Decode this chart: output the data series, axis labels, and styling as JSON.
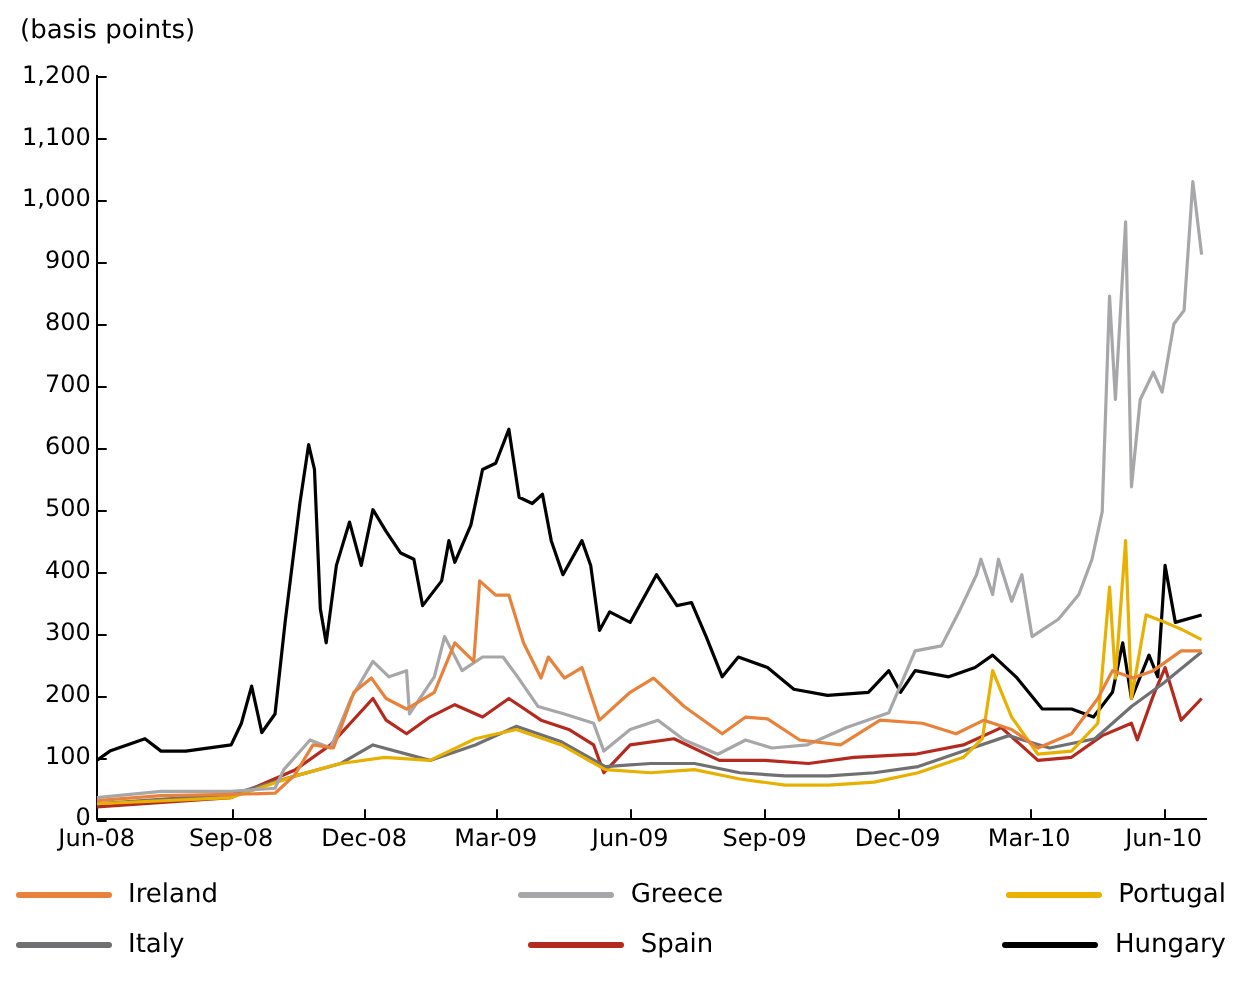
{
  "chart_data": {
    "type": "line",
    "ylabel": "(basis points)",
    "xlim": [
      "2008-06-01",
      "2010-06-30"
    ],
    "xticks": [
      {
        "value": "2008-06-01",
        "label": "Jun-08"
      },
      {
        "value": "2008-09-01",
        "label": "Sep-08"
      },
      {
        "value": "2008-12-01",
        "label": "Dec-08"
      },
      {
        "value": "2009-03-01",
        "label": "Mar-09"
      },
      {
        "value": "2009-06-01",
        "label": "Jun-09"
      },
      {
        "value": "2009-09-01",
        "label": "Sep-09"
      },
      {
        "value": "2009-12-01",
        "label": "Dec-09"
      },
      {
        "value": "2010-03-01",
        "label": "Mar-10"
      },
      {
        "value": "2010-06-01",
        "label": "Jun-10"
      }
    ],
    "ylim": [
      0,
      1200
    ],
    "yticks": [
      0,
      100,
      200,
      300,
      400,
      500,
      600,
      700,
      800,
      900,
      {
        "value": 1000,
        "label": "1,000"
      },
      {
        "value": 1100,
        "label": "1,100"
      },
      {
        "value": 1200,
        "label": "1,200"
      }
    ],
    "grid": false,
    "legend": "bottom",
    "marker": "none",
    "line_style": "solid",
    "series": [
      {
        "name": "Ireland",
        "color": "#e8823a",
        "x": [
          "2008-06-01",
          "2008-07-15",
          "2008-09-01",
          "2008-10-01",
          "2008-10-14",
          "2008-10-27",
          "2008-11-10",
          "2008-11-24",
          "2008-12-06",
          "2008-12-16",
          "2008-12-30",
          "2009-01-18",
          "2009-02-01",
          "2009-02-14",
          "2009-02-18",
          "2009-03-01",
          "2009-03-10",
          "2009-03-20",
          "2009-04-01",
          "2009-04-06",
          "2009-04-17",
          "2009-04-29",
          "2009-05-11",
          "2009-06-01",
          "2009-06-17",
          "2009-07-08",
          "2009-08-03",
          "2009-08-19",
          "2009-09-03",
          "2009-09-25",
          "2009-10-23",
          "2009-11-19",
          "2009-12-18",
          "2010-01-10",
          "2010-01-29",
          "2010-02-17",
          "2010-03-07",
          "2010-03-30",
          "2010-04-17",
          "2010-04-27",
          "2010-05-11",
          "2010-05-25",
          "2010-06-13",
          "2010-06-27"
        ],
        "values": [
          30,
          38,
          40,
          42,
          70,
          120,
          115,
          205,
          228,
          195,
          178,
          205,
          285,
          255,
          385,
          362,
          362,
          285,
          228,
          262,
          228,
          245,
          160,
          205,
          228,
          182,
          138,
          165,
          162,
          128,
          120,
          160,
          155,
          138,
          160,
          145,
          115,
          138,
          195,
          240,
          228,
          240,
          272,
          272
        ]
      },
      {
        "name": "Greece",
        "color": "#a7a7a9",
        "x": [
          "2008-06-01",
          "2008-07-15",
          "2008-09-01",
          "2008-10-01",
          "2008-10-07",
          "2008-10-25",
          "2008-11-08",
          "2008-11-22",
          "2008-12-07",
          "2008-12-18",
          "2008-12-30",
          "2009-01-01",
          "2009-01-18",
          "2009-01-25",
          "2009-02-06",
          "2009-02-20",
          "2009-03-06",
          "2009-03-16",
          "2009-03-30",
          "2009-04-17",
          "2009-05-07",
          "2009-05-14",
          "2009-06-01",
          "2009-06-20",
          "2009-07-08",
          "2009-07-31",
          "2009-08-19",
          "2009-09-06",
          "2009-09-30",
          "2009-10-27",
          "2009-11-25",
          "2009-12-13",
          "2009-12-31",
          "2010-01-12",
          "2010-01-24",
          "2010-01-27",
          "2010-02-04",
          "2010-02-08",
          "2010-02-17",
          "2010-02-24",
          "2010-03-03",
          "2010-03-21",
          "2010-04-04",
          "2010-04-13",
          "2010-04-20",
          "2010-04-25",
          "2010-04-29",
          "2010-05-06",
          "2010-05-10",
          "2010-05-16",
          "2010-05-25",
          "2010-05-31",
          "2010-06-08",
          "2010-06-15",
          "2010-06-21",
          "2010-06-27"
        ],
        "values": [
          35,
          45,
          45,
          50,
          80,
          128,
          115,
          195,
          255,
          230,
          240,
          170,
          230,
          295,
          240,
          262,
          262,
          230,
          182,
          170,
          155,
          110,
          145,
          160,
          128,
          105,
          128,
          115,
          120,
          148,
          172,
          272,
          280,
          335,
          395,
          420,
          363,
          420,
          352,
          395,
          295,
          323,
          363,
          420,
          497,
          845,
          678,
          965,
          537,
          678,
          722,
          690,
          800,
          822,
          1030,
          912
        ]
      },
      {
        "name": "Portugal",
        "color": "#e8b000",
        "x": [
          "2008-06-01",
          "2008-09-01",
          "2008-10-15",
          "2008-11-15",
          "2008-12-15",
          "2009-01-15",
          "2009-02-15",
          "2009-03-15",
          "2009-04-15",
          "2009-05-15",
          "2009-06-15",
          "2009-07-15",
          "2009-08-15",
          "2009-09-15",
          "2009-10-15",
          "2009-11-15",
          "2009-12-15",
          "2010-01-15",
          "2010-01-28",
          "2010-02-04",
          "2010-02-17",
          "2010-03-07",
          "2010-03-30",
          "2010-04-17",
          "2010-04-25",
          "2010-04-29",
          "2010-05-06",
          "2010-05-10",
          "2010-05-20",
          "2010-06-02",
          "2010-06-13",
          "2010-06-27"
        ],
        "values": [
          25,
          35,
          70,
          90,
          100,
          95,
          130,
          145,
          120,
          80,
          75,
          80,
          65,
          55,
          55,
          60,
          75,
          100,
          130,
          240,
          165,
          105,
          110,
          155,
          375,
          228,
          450,
          195,
          330,
          318,
          307,
          290
        ]
      },
      {
        "name": "Italy",
        "color": "#707072",
        "x": [
          "2008-06-01",
          "2008-09-01",
          "2008-10-15",
          "2008-11-15",
          "2008-12-07",
          "2009-01-15",
          "2009-02-15",
          "2009-03-15",
          "2009-04-15",
          "2009-05-15",
          "2009-06-15",
          "2009-07-15",
          "2009-08-15",
          "2009-09-15",
          "2009-10-15",
          "2009-11-15",
          "2009-12-15",
          "2010-01-15",
          "2010-02-15",
          "2010-03-15",
          "2010-04-15",
          "2010-05-10",
          "2010-06-01",
          "2010-06-27"
        ],
        "values": [
          25,
          40,
          70,
          90,
          120,
          95,
          120,
          150,
          125,
          85,
          90,
          90,
          75,
          70,
          70,
          75,
          85,
          110,
          135,
          115,
          130,
          182,
          220,
          270
        ]
      },
      {
        "name": "Spain",
        "color": "#b52a1e",
        "x": [
          "2008-06-01",
          "2008-09-01",
          "2008-10-15",
          "2008-11-08",
          "2008-12-07",
          "2008-12-16",
          "2008-12-30",
          "2009-01-15",
          "2009-02-01",
          "2009-02-20",
          "2009-03-10",
          "2009-04-01",
          "2009-04-20",
          "2009-05-07",
          "2009-05-14",
          "2009-06-01",
          "2009-07-01",
          "2009-08-01",
          "2009-09-01",
          "2009-10-01",
          "2009-11-01",
          "2009-12-13",
          "2010-01-15",
          "2010-02-10",
          "2010-03-07",
          "2010-03-30",
          "2010-04-20",
          "2010-05-10",
          "2010-05-14",
          "2010-05-25",
          "2010-06-02",
          "2010-06-13",
          "2010-06-27"
        ],
        "values": [
          20,
          35,
          80,
          120,
          195,
          160,
          138,
          165,
          185,
          165,
          195,
          160,
          145,
          120,
          75,
          120,
          130,
          95,
          95,
          90,
          100,
          105,
          120,
          148,
          95,
          100,
          135,
          155,
          128,
          200,
          245,
          160,
          195
        ]
      },
      {
        "name": "Hungary",
        "color": "#000000",
        "x": [
          "2008-06-01",
          "2008-06-10",
          "2008-07-04",
          "2008-07-15",
          "2008-08-01",
          "2008-09-01",
          "2008-09-08",
          "2008-09-15",
          "2008-09-22",
          "2008-10-01",
          "2008-10-08",
          "2008-10-18",
          "2008-10-24",
          "2008-10-28",
          "2008-11-01",
          "2008-11-05",
          "2008-11-12",
          "2008-11-21",
          "2008-11-29",
          "2008-12-07",
          "2008-12-16",
          "2008-12-26",
          "2009-01-04",
          "2009-01-10",
          "2009-01-23",
          "2009-01-28",
          "2009-02-01",
          "2009-02-12",
          "2009-02-20",
          "2009-03-01",
          "2009-03-10",
          "2009-03-17",
          "2009-03-26",
          "2009-04-02",
          "2009-04-08",
          "2009-04-16",
          "2009-04-29",
          "2009-05-05",
          "2009-05-11",
          "2009-05-18",
          "2009-06-01",
          "2009-06-19",
          "2009-07-03",
          "2009-07-13",
          "2009-07-23",
          "2009-08-03",
          "2009-08-14",
          "2009-09-03",
          "2009-09-21",
          "2009-10-14",
          "2009-11-11",
          "2009-11-25",
          "2009-12-03",
          "2009-12-13",
          "2010-01-05",
          "2010-01-23",
          "2010-02-04",
          "2010-02-20",
          "2010-03-10",
          "2010-03-30",
          "2010-04-14",
          "2010-04-27",
          "2010-05-04",
          "2010-05-10",
          "2010-05-22",
          "2010-05-28",
          "2010-06-02",
          "2010-06-09",
          "2010-06-27"
        ],
        "values": [
          95,
          110,
          130,
          110,
          110,
          120,
          155,
          215,
          140,
          170,
          320,
          510,
          605,
          565,
          340,
          285,
          410,
          480,
          410,
          500,
          465,
          430,
          420,
          345,
          385,
          450,
          415,
          475,
          565,
          575,
          630,
          520,
          510,
          525,
          450,
          395,
          450,
          410,
          305,
          335,
          318,
          395,
          345,
          350,
          295,
          230,
          262,
          245,
          210,
          200,
          205,
          240,
          205,
          240,
          230,
          245,
          265,
          230,
          178,
          178,
          165,
          205,
          285,
          195,
          265,
          230,
          410,
          318,
          330
        ]
      }
    ]
  }
}
